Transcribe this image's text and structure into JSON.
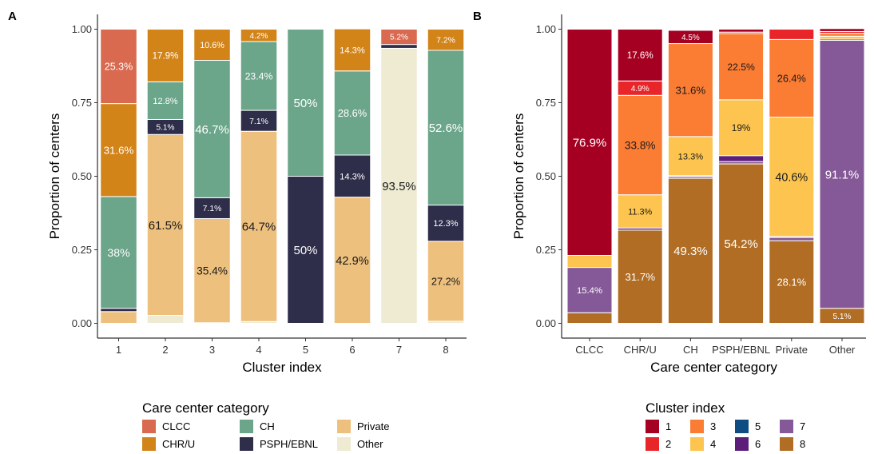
{
  "chart_data": [
    {
      "panel": "A",
      "type": "bar",
      "stacked": true,
      "xlabel": "Cluster index",
      "ylabel": "Proportion of centers",
      "ylim": [
        0,
        1
      ],
      "yticks": [
        "0.00",
        "0.25",
        "0.50",
        "0.75",
        "1.00"
      ],
      "categories": [
        "1",
        "2",
        "3",
        "4",
        "5",
        "6",
        "7",
        "8"
      ],
      "legend_title": "Care center category",
      "legend_position": "bottom",
      "series": [
        {
          "name": "CLCC",
          "color": "#D9694F",
          "values": [
            0.253,
            0,
            0,
            0,
            0,
            0,
            0.052,
            0
          ]
        },
        {
          "name": "CHR/U",
          "color": "#D38419",
          "values": [
            0.316,
            0.179,
            0.106,
            0.042,
            0,
            0.143,
            0,
            0.072
          ]
        },
        {
          "name": "CH",
          "color": "#6BA58A",
          "values": [
            0.38,
            0.128,
            0.467,
            0.234,
            0.5,
            0.286,
            0,
            0.526
          ]
        },
        {
          "name": "PSPH/EBNL",
          "color": "#2E2D4A",
          "values": [
            0.011,
            0.051,
            0.071,
            0.071,
            0.5,
            0.143,
            0.013,
            0.123
          ]
        },
        {
          "name": "Private",
          "color": "#EEC07E",
          "values": [
            0.04,
            0.615,
            0.354,
            0.647,
            0,
            0.429,
            0,
            0.272
          ]
        },
        {
          "name": "Other",
          "color": "#EEEBD2",
          "values": [
            0,
            0.027,
            0.002,
            0.006,
            0,
            0,
            0.935,
            0.007
          ]
        }
      ],
      "data_labels": [
        {
          "cat": 0,
          "series": 0,
          "text": "25.3%"
        },
        {
          "cat": 0,
          "series": 1,
          "text": "31.6%"
        },
        {
          "cat": 0,
          "series": 2,
          "text": "38%"
        },
        {
          "cat": 1,
          "series": 1,
          "text": "17.9%"
        },
        {
          "cat": 1,
          "series": 2,
          "text": "12.8%"
        },
        {
          "cat": 1,
          "series": 3,
          "text": "5.1%"
        },
        {
          "cat": 1,
          "series": 4,
          "text": "61.5%"
        },
        {
          "cat": 2,
          "series": 1,
          "text": "10.6%"
        },
        {
          "cat": 2,
          "series": 2,
          "text": "46.7%"
        },
        {
          "cat": 2,
          "series": 3,
          "text": "7.1%"
        },
        {
          "cat": 2,
          "series": 4,
          "text": "35.4%"
        },
        {
          "cat": 3,
          "series": 1,
          "text": "4.2%"
        },
        {
          "cat": 3,
          "series": 2,
          "text": "23.4%"
        },
        {
          "cat": 3,
          "series": 3,
          "text": "7.1%"
        },
        {
          "cat": 3,
          "series": 4,
          "text": "64.7%"
        },
        {
          "cat": 4,
          "series": 2,
          "text": "50%"
        },
        {
          "cat": 4,
          "series": 3,
          "text": "50%"
        },
        {
          "cat": 5,
          "series": 1,
          "text": "14.3%"
        },
        {
          "cat": 5,
          "series": 2,
          "text": "28.6%"
        },
        {
          "cat": 5,
          "series": 3,
          "text": "14.3%"
        },
        {
          "cat": 5,
          "series": 4,
          "text": "42.9%"
        },
        {
          "cat": 6,
          "series": 0,
          "text": "5.2%"
        },
        {
          "cat": 6,
          "series": 5,
          "text": "93.5%"
        },
        {
          "cat": 7,
          "series": 1,
          "text": "7.2%"
        },
        {
          "cat": 7,
          "series": 2,
          "text": "52.6%"
        },
        {
          "cat": 7,
          "series": 3,
          "text": "12.3%"
        },
        {
          "cat": 7,
          "series": 4,
          "text": "27.2%"
        }
      ]
    },
    {
      "panel": "B",
      "type": "bar",
      "stacked": true,
      "xlabel": "Care center category",
      "ylabel": "Proportion of centers",
      "ylim": [
        0,
        1
      ],
      "yticks": [
        "0.00",
        "0.25",
        "0.50",
        "0.75",
        "1.00"
      ],
      "categories": [
        "CLCC",
        "CHR/U",
        "CH",
        "PSPH/EBNL",
        "Private",
        "Other"
      ],
      "legend_title": "Cluster index",
      "legend_position": "bottom",
      "series": [
        {
          "name": "1",
          "color": "#A50021",
          "values": [
            0.769,
            0.176,
            0.045,
            0.01,
            0,
            0.01
          ]
        },
        {
          "name": "2",
          "color": "#E8262A",
          "values": [
            0,
            0.049,
            0,
            0.005,
            0.035,
            0.006
          ]
        },
        {
          "name": "3",
          "color": "#FB7C33",
          "values": [
            0,
            0.338,
            0.316,
            0.225,
            0.264,
            0.01
          ]
        },
        {
          "name": "4",
          "color": "#FDC54F",
          "values": [
            0.041,
            0.113,
            0.133,
            0.19,
            0.406,
            0.01
          ]
        },
        {
          "name": "5",
          "color": "#0E4C81",
          "values": [
            0,
            0,
            0,
            0,
            0,
            0
          ]
        },
        {
          "name": "6",
          "color": "#5B1F79",
          "values": [
            0,
            0.007,
            0.003,
            0.02,
            0.003,
            0.004
          ]
        },
        {
          "name": "7",
          "color": "#855997",
          "values": [
            0.154,
            0,
            0.006,
            0.008,
            0.011,
            0.911
          ]
        },
        {
          "name": "8",
          "color": "#B06D23",
          "values": [
            0.036,
            0.317,
            0.493,
            0.542,
            0.281,
            0.051
          ]
        }
      ],
      "data_labels": [
        {
          "cat": 0,
          "series": 0,
          "text": "76.9%"
        },
        {
          "cat": 0,
          "series": 6,
          "text": "15.4%"
        },
        {
          "cat": 1,
          "series": 0,
          "text": "17.6%"
        },
        {
          "cat": 1,
          "series": 1,
          "text": "4.9%"
        },
        {
          "cat": 1,
          "series": 2,
          "text": "33.8%"
        },
        {
          "cat": 1,
          "series": 3,
          "text": "11.3%"
        },
        {
          "cat": 1,
          "series": 7,
          "text": "31.7%"
        },
        {
          "cat": 2,
          "series": 0,
          "text": "4.5%"
        },
        {
          "cat": 2,
          "series": 2,
          "text": "31.6%"
        },
        {
          "cat": 2,
          "series": 3,
          "text": "13.3%"
        },
        {
          "cat": 2,
          "series": 7,
          "text": "49.3%"
        },
        {
          "cat": 3,
          "series": 2,
          "text": "22.5%"
        },
        {
          "cat": 3,
          "series": 3,
          "text": "19%"
        },
        {
          "cat": 3,
          "series": 7,
          "text": "54.2%"
        },
        {
          "cat": 4,
          "series": 2,
          "text": "26.4%"
        },
        {
          "cat": 4,
          "series": 3,
          "text": "40.6%"
        },
        {
          "cat": 4,
          "series": 7,
          "text": "28.1%"
        },
        {
          "cat": 5,
          "series": 6,
          "text": "91.1%"
        },
        {
          "cat": 5,
          "series": 7,
          "text": "5.1%"
        }
      ]
    }
  ]
}
